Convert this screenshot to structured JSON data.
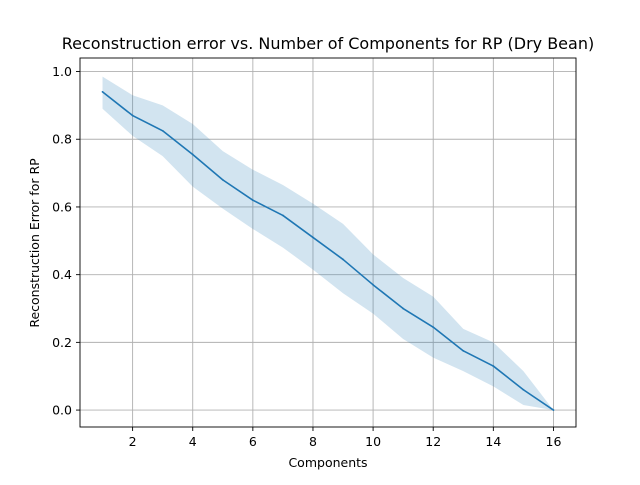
{
  "chart_data": {
    "type": "line",
    "title": "Reconstruction error vs. Number of Components for RP (Dry Bean)",
    "xlabel": "Components",
    "ylabel": "Reconstruction Error for RP",
    "xlim": [
      0.25,
      16.75
    ],
    "ylim": [
      -0.05,
      1.04
    ],
    "xticks": [
      2,
      4,
      6,
      8,
      10,
      12,
      14,
      16
    ],
    "yticks": [
      0.0,
      0.2,
      0.4,
      0.6,
      0.8,
      1.0
    ],
    "xtick_labels": [
      "2",
      "4",
      "6",
      "8",
      "10",
      "12",
      "14",
      "16"
    ],
    "ytick_labels": [
      "0.0",
      "0.2",
      "0.4",
      "0.6",
      "0.8",
      "1.0"
    ],
    "grid": true,
    "line_color": "#1f77b4",
    "band_color": "#1f77b4",
    "x": [
      1,
      2,
      3,
      4,
      5,
      6,
      7,
      8,
      9,
      10,
      11,
      12,
      13,
      14,
      15,
      16
    ],
    "series": [
      {
        "values": [
          0.94,
          0.87,
          0.825,
          0.755,
          0.68,
          0.62,
          0.575,
          0.51,
          0.445,
          0.37,
          0.3,
          0.245,
          0.175,
          0.13,
          0.06,
          0.0
        ],
        "upper": [
          0.985,
          0.93,
          0.9,
          0.845,
          0.765,
          0.71,
          0.665,
          0.61,
          0.55,
          0.46,
          0.39,
          0.335,
          0.24,
          0.2,
          0.115,
          0.0
        ],
        "lower": [
          0.89,
          0.81,
          0.75,
          0.66,
          0.595,
          0.535,
          0.48,
          0.415,
          0.345,
          0.285,
          0.21,
          0.155,
          0.115,
          0.07,
          0.015,
          0.0
        ]
      }
    ]
  }
}
